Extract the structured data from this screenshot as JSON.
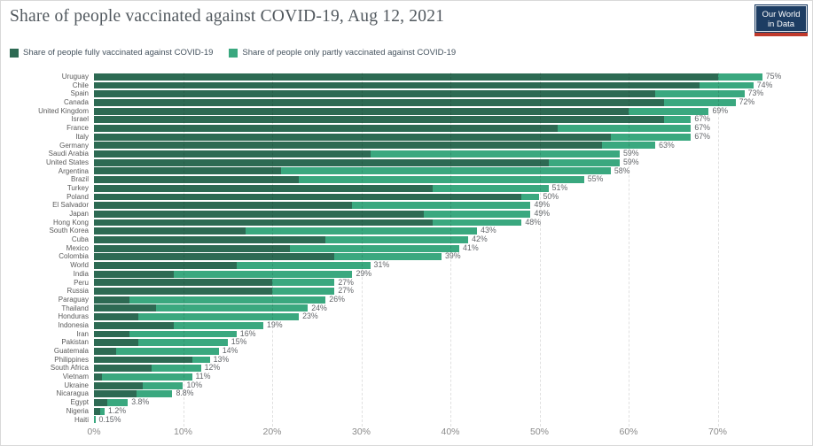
{
  "title": "Share of people vaccinated against COVID-19, Aug 12, 2021",
  "logo": {
    "line1": "Our World",
    "line2": "in Data",
    "bg_color": "#1d3d63",
    "stripe_color": "#c0392b"
  },
  "legend": {
    "items": [
      {
        "label": "Share of people fully vaccinated against COVID-19",
        "color": "#2d6a53"
      },
      {
        "label": "Share of people only partly vaccinated against COVID-19",
        "color": "#3aa87f"
      }
    ]
  },
  "chart_data": {
    "type": "bar",
    "orientation": "horizontal",
    "stacked": true,
    "grid": true,
    "xlim": [
      0,
      80
    ],
    "x_ticks": [
      "0%",
      "10%",
      "20%",
      "30%",
      "40%",
      "50%",
      "60%",
      "70%"
    ],
    "x_tick_values": [
      0,
      10,
      20,
      30,
      40,
      50,
      60,
      70
    ],
    "categories": [
      "Uruguay",
      "Chile",
      "Spain",
      "Canada",
      "United Kingdom",
      "Israel",
      "France",
      "Italy",
      "Germany",
      "Saudi Arabia",
      "United States",
      "Argentina",
      "Brazil",
      "Turkey",
      "Poland",
      "El Salvador",
      "Japan",
      "Hong Kong",
      "South Korea",
      "Cuba",
      "Mexico",
      "Colombia",
      "World",
      "India",
      "Peru",
      "Russia",
      "Paraguay",
      "Thailand",
      "Honduras",
      "Indonesia",
      "Iran",
      "Pakistan",
      "Guatemala",
      "Philippines",
      "South Africa",
      "Vietnam",
      "Ukraine",
      "Nicaragua",
      "Egypt",
      "Nigeria",
      "Haiti"
    ],
    "series": [
      {
        "name": "Share of people fully vaccinated against COVID-19",
        "color": "#2d6a53",
        "values": [
          70,
          68,
          63,
          64,
          60,
          64,
          52,
          58,
          57,
          31,
          51,
          21,
          23,
          38,
          48,
          29,
          37,
          38,
          17,
          26,
          22,
          27,
          16,
          9,
          20,
          20,
          4,
          7,
          5,
          9,
          4,
          5,
          2.5,
          11,
          6.5,
          0.9,
          5.5,
          4.8,
          1.5,
          0.7,
          0
        ]
      },
      {
        "name": "Share of people only partly vaccinated against COVID-19",
        "color": "#3aa87f",
        "values": [
          5,
          6,
          10,
          8,
          9,
          3,
          15,
          9,
          6,
          28,
          8,
          37,
          32,
          13,
          2,
          20,
          12,
          10,
          26,
          16,
          19,
          12,
          15,
          20,
          7,
          7,
          22,
          17,
          18,
          10,
          12,
          10,
          11.5,
          2,
          5.5,
          10.1,
          4.5,
          4,
          2.3,
          0.5,
          0.15
        ]
      }
    ],
    "totals": [
      75,
      74,
      73,
      72,
      69,
      67,
      67,
      67,
      63,
      59,
      59,
      58,
      55,
      51,
      50,
      49,
      49,
      48,
      43,
      42,
      41,
      39,
      31,
      29,
      27,
      27,
      26,
      24,
      23,
      19,
      16,
      15,
      14,
      13,
      12,
      11,
      10,
      8.8,
      3.8,
      1.2,
      0.15
    ],
    "value_labels": [
      "75%",
      "74%",
      "73%",
      "72%",
      "69%",
      "67%",
      "67%",
      "67%",
      "63%",
      "59%",
      "59%",
      "58%",
      "55%",
      "51%",
      "50%",
      "49%",
      "49%",
      "48%",
      "43%",
      "42%",
      "41%",
      "39%",
      "31%",
      "29%",
      "27%",
      "27%",
      "26%",
      "24%",
      "23%",
      "19%",
      "16%",
      "15%",
      "14%",
      "13%",
      "12%",
      "11%",
      "10%",
      "8.8%",
      "3.8%",
      "1.2%",
      "0.15%"
    ]
  }
}
